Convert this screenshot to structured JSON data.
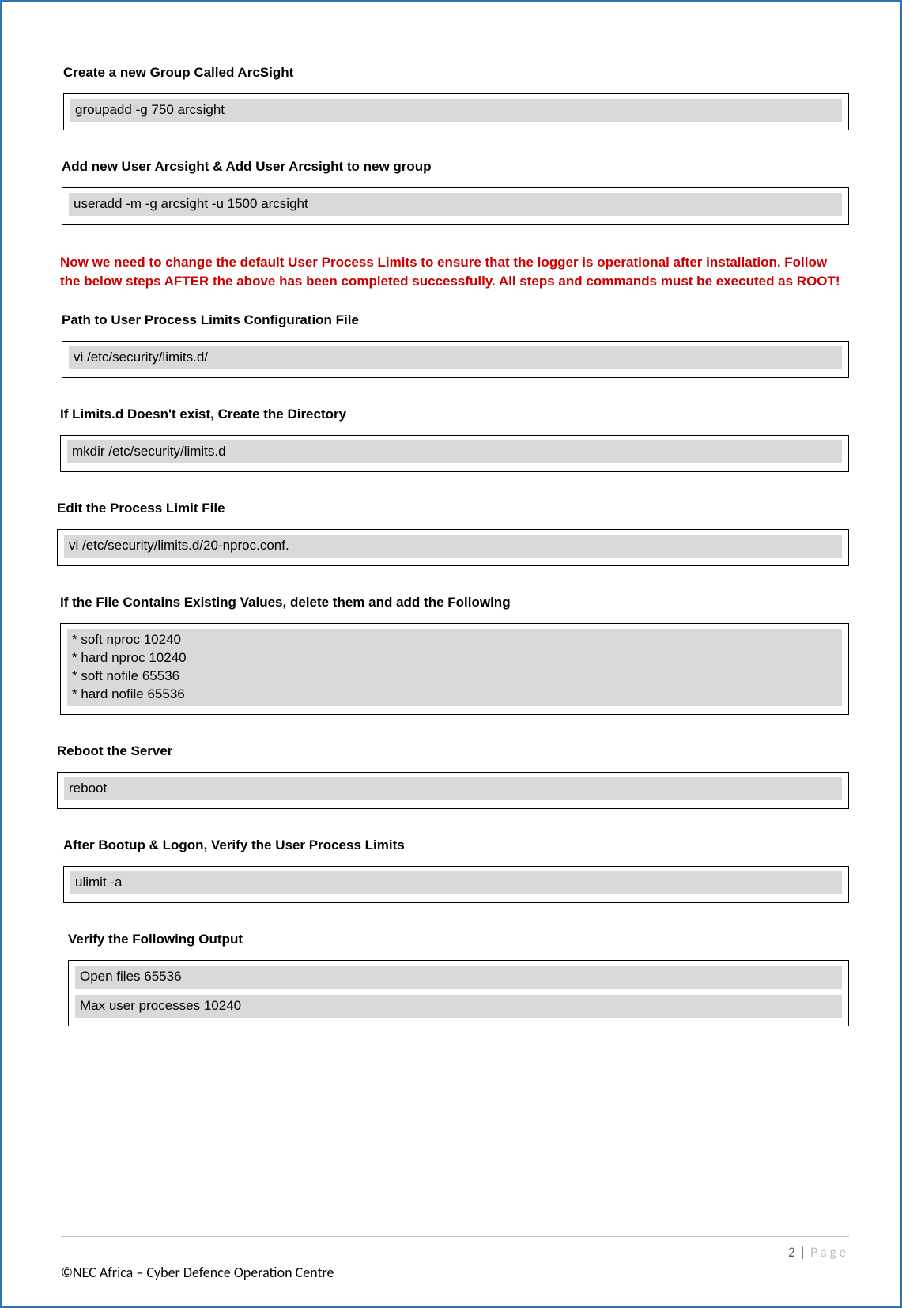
{
  "sections": [
    {
      "heading": "Create a new Group Called ArcSight",
      "lines": [
        "groupadd -g 750 arcsight"
      ],
      "indent": 8
    },
    {
      "heading": "Add new User Arcsight & Add User Arcsight to new group",
      "lines": [
        "useradd -m -g arcsight -u 1500 arcsight"
      ],
      "indent": 6
    }
  ],
  "warning": "Now we need to change the default User Process Limits to ensure that the logger is operational after installation. Follow the below steps AFTER the above has been completed successfully. All steps and commands must be executed as ROOT!",
  "sections2": [
    {
      "heading": "Path to User Process Limits Configuration File",
      "lines": [
        "vi /etc/security/limits.d/"
      ],
      "indent": 6
    },
    {
      "heading": "If Limits.d Doesn't exist, Create the Directory",
      "lines": [
        "mkdir /etc/security/limits.d"
      ],
      "indent": 4
    },
    {
      "heading": "Edit the Process Limit File",
      "lines": [
        "vi /etc/security/limits.d/20-nproc.conf."
      ],
      "indent": 0
    },
    {
      "heading": "If the File Contains Existing Values, delete them and add the Following",
      "multi": "* soft nproc 10240\n* hard nproc 10240\n* soft nofile 65536\n* hard nofile 65536",
      "indent": 4
    },
    {
      "heading": "Reboot the Server",
      "lines": [
        "reboot"
      ],
      "indent": 0
    },
    {
      "heading": "After Bootup & Logon, Verify the User Process Limits",
      "lines": [
        "ulimit -a"
      ],
      "indent": 8
    },
    {
      "heading": "Verify the Following Output",
      "lines": [
        "Open files 65536",
        "Max user processes 10240"
      ],
      "indent": 14
    }
  ],
  "footer": {
    "page_num": "2",
    "page_sep": "|",
    "page_label": "Page",
    "copyright": "©NEC Africa – Cyber Defence Operation Centre"
  },
  "colors": {
    "border": "#2e74b5",
    "warning_text": "#cc0000",
    "cmd_bg": "#d9d9d9",
    "page_label": "#bfbfbf",
    "rule": "#bfbfbf"
  }
}
